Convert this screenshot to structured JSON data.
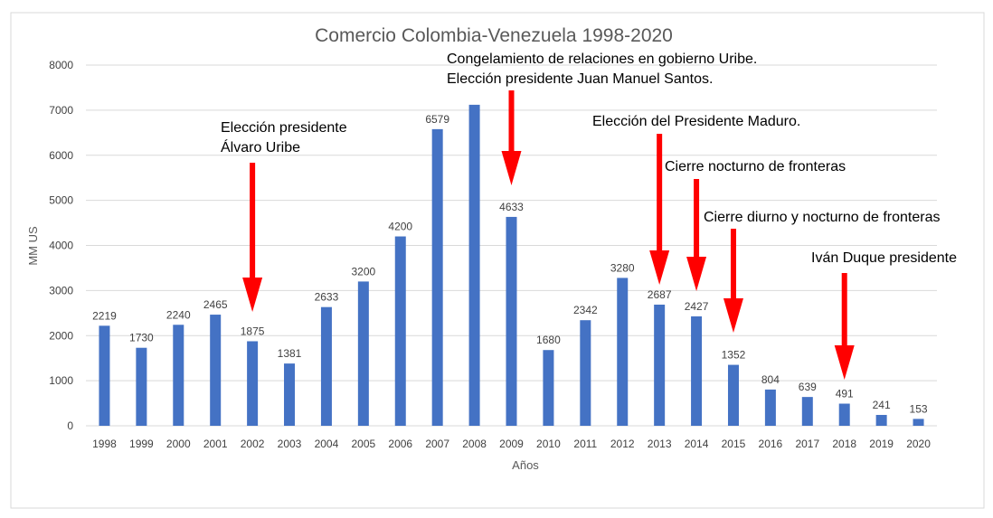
{
  "chart_data": {
    "type": "bar",
    "title": "Comercio Colombia-Venezuela 1998-2020",
    "xlabel": "Años",
    "ylabel": "MM US",
    "ylim": [
      0,
      8000
    ],
    "yticks": [
      "0",
      "1000",
      "2000",
      "3000",
      "4000",
      "5000",
      "6000",
      "7000",
      "8000"
    ],
    "grid": true,
    "bar_color": "#4472c4",
    "categories": [
      "1998",
      "1999",
      "2000",
      "2001",
      "2002",
      "2003",
      "2004",
      "2005",
      "2006",
      "2007",
      "2008",
      "2009",
      "2010",
      "2011",
      "2012",
      "2013",
      "2014",
      "2015",
      "2016",
      "2017",
      "2018",
      "2019",
      "2020"
    ],
    "values": [
      2219,
      1730,
      2240,
      2465,
      1875,
      1381,
      2633,
      3200,
      4200,
      6579,
      7120,
      4633,
      1680,
      2342,
      3280,
      2687,
      2427,
      1352,
      804,
      639,
      491,
      241,
      153
    ],
    "data_labels": [
      "2219",
      "1730",
      "2240",
      "2465",
      "1875",
      "1381",
      "2633",
      "3200",
      "4200",
      "6579",
      "",
      "4633",
      "1680",
      "2342",
      "3280",
      "2687",
      "2427",
      "1352",
      "804",
      "639",
      "491",
      "241",
      "153"
    ],
    "arrow_color": "#ff0000",
    "annotations": [
      {
        "lines": [
          "Elección presidente",
          "Álvaro Uribe"
        ],
        "year": "2002"
      },
      {
        "lines": [
          "Congelamiento de relaciones en gobierno Uribe.",
          "Elección presidente Juan Manuel Santos."
        ],
        "year": "2009"
      },
      {
        "lines": [
          "Elección del Presidente Maduro."
        ],
        "year": "2013"
      },
      {
        "lines": [
          "Cierre nocturno de fronteras"
        ],
        "year": "2014"
      },
      {
        "lines": [
          "Cierre diurno y nocturno de fronteras"
        ],
        "year": "2015"
      },
      {
        "lines": [
          "Iván Duque presidente"
        ],
        "year": "2018"
      }
    ]
  }
}
